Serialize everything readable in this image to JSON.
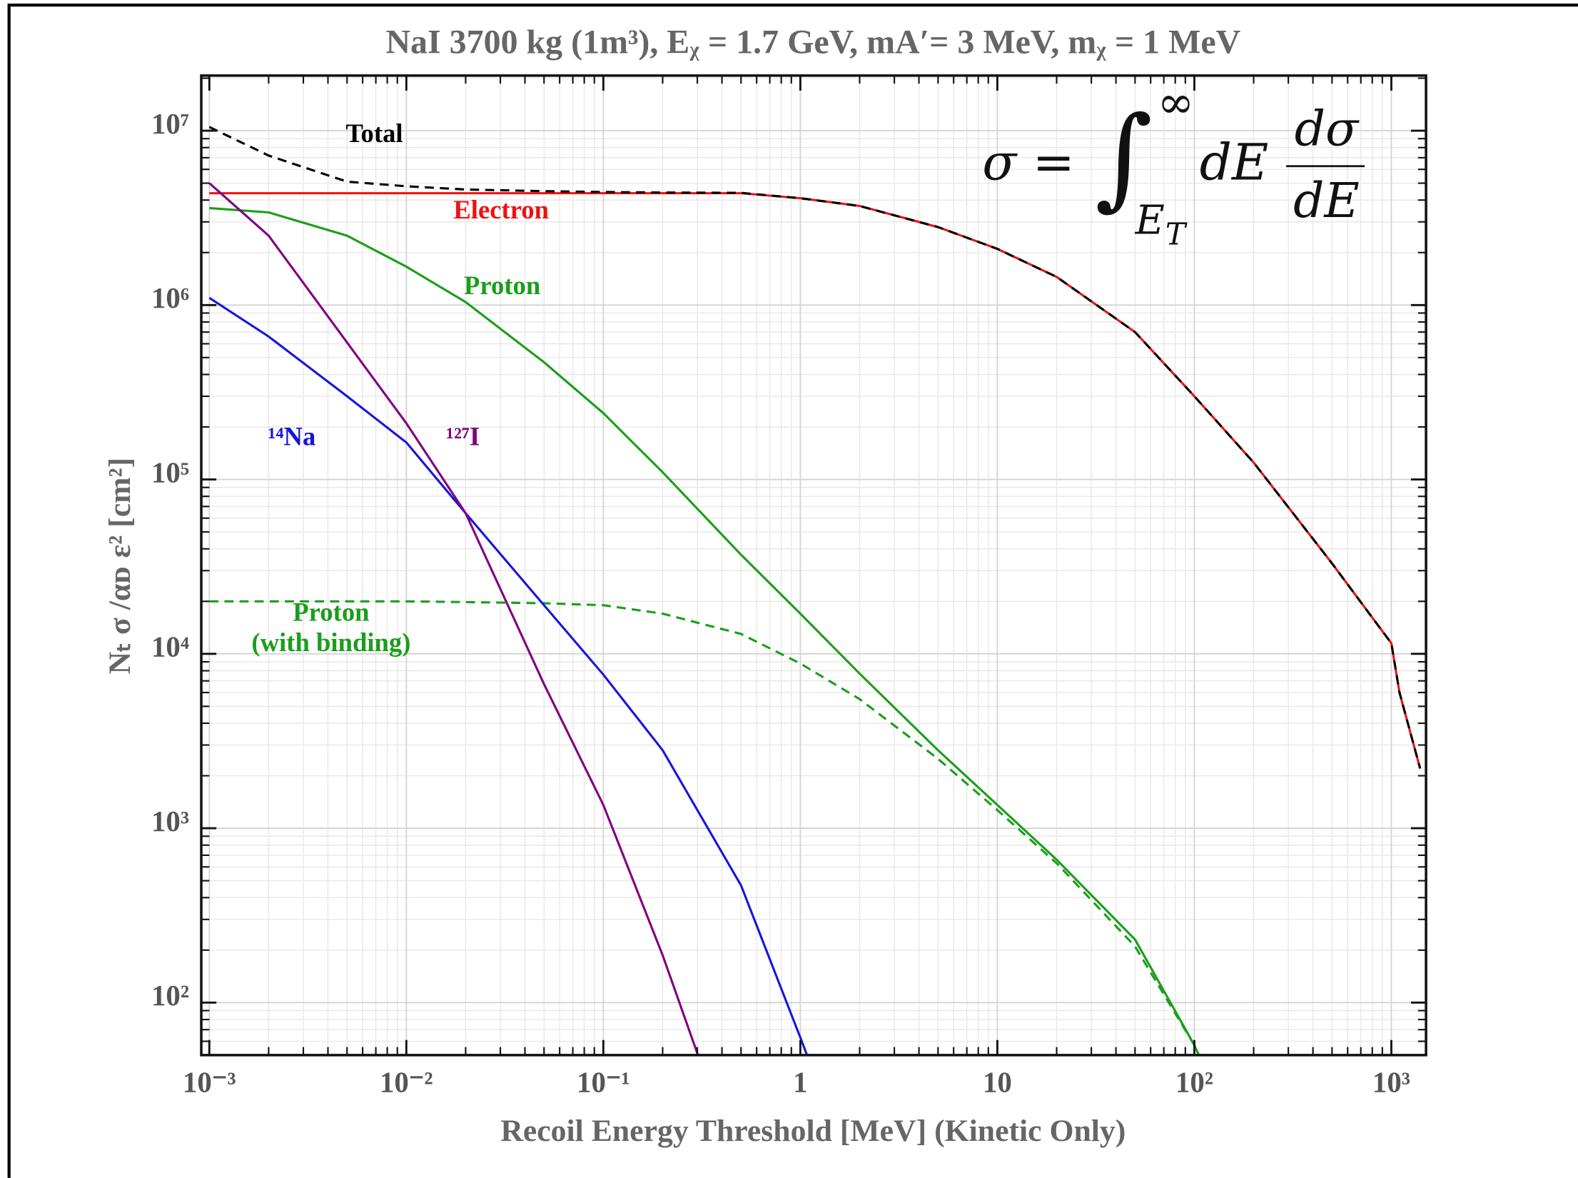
{
  "chart_data": {
    "type": "line",
    "title": "NaI 3700 kg (1m³),    Eᵪ = 1.7 GeV, mA′= 3 MeV, mᵪ = 1 MeV",
    "xlabel": "Recoil Energy Threshold  [MeV]  (Kinetic Only)",
    "ylabel": "Nₜ σ /αᴅ ε²   [cm²]",
    "log_x": true,
    "log_y": true,
    "grid": true,
    "xlim": [
      0.00091,
      1500
    ],
    "ylim": [
      50,
      20700000
    ],
    "xticks": [
      {
        "value": 0.001,
        "label": "10⁻³"
      },
      {
        "value": 0.01,
        "label": "10⁻²"
      },
      {
        "value": 0.1,
        "label": "10⁻¹"
      },
      1,
      10,
      {
        "value": 100,
        "label": "10²"
      },
      {
        "value": 1000,
        "label": "10³"
      }
    ],
    "yticks": [
      {
        "value": 100,
        "label": "10²"
      },
      {
        "value": 1000,
        "label": "10³"
      },
      {
        "value": 10000,
        "label": "10⁴"
      },
      {
        "value": 100000,
        "label": "10⁵"
      },
      {
        "value": 1000000,
        "label": "10⁶"
      },
      {
        "value": 10000000,
        "label": "10⁷"
      }
    ],
    "x": [
      0.001,
      0.002,
      0.005,
      0.01,
      0.02,
      0.05,
      0.1,
      0.2,
      0.5,
      1,
      2,
      5,
      10,
      20,
      50,
      100,
      200,
      500,
      1000,
      1100,
      1400
    ],
    "series": [
      {
        "name": "Electron",
        "color": "#ee1111",
        "dashed": false,
        "values": [
          4380000,
          4380000,
          4380000,
          4380000,
          4380000,
          4380000,
          4380000,
          4380000,
          4380000,
          4100000,
          3700000,
          2800000,
          2100000,
          1450000,
          700000,
          300000,
          125000,
          33000,
          11500,
          6000,
          2200
        ]
      },
      {
        "name": "Total",
        "color": "#000000",
        "dashed": true,
        "values": [
          10500000,
          7200000,
          5100000,
          4800000,
          4600000,
          4500000,
          4450000,
          4420000,
          4400000,
          4100000,
          3700000,
          2800000,
          2100000,
          1450000,
          700000,
          300000,
          125000,
          33000,
          11500,
          6000,
          2200
        ]
      },
      {
        "name": "Proton",
        "color": "#1a9e1a",
        "dashed": false,
        "values": [
          3600000,
          3400000,
          2500000,
          1660000,
          1040000,
          470000,
          240000,
          110000,
          37000,
          17000,
          7700,
          2800,
          1360,
          660,
          230,
          57,
          10,
          null,
          null,
          null,
          null
        ]
      },
      {
        "name": "Proton (with binding)",
        "color": "#1a9e1a",
        "dashed": true,
        "values": [
          20000,
          20000,
          20000,
          20000,
          19800,
          19500,
          19000,
          17000,
          13000,
          8800,
          5500,
          2500,
          1270,
          630,
          210,
          57,
          10,
          null,
          null,
          null,
          null
        ]
      },
      {
        "name": "¹⁴Na",
        "color": "#1515e0",
        "dashed": false,
        "values": [
          1100000,
          660000,
          300000,
          163000,
          64000,
          19000,
          7600,
          2800,
          470,
          63,
          8,
          null,
          null,
          null,
          null,
          null,
          null,
          null,
          null,
          null,
          null
        ]
      },
      {
        "name": "¹²⁷I",
        "color": "#800080",
        "dashed": false,
        "values": [
          5000000,
          2500000,
          610000,
          210000,
          64000,
          6700,
          1360,
          187,
          10,
          null,
          null,
          null,
          null,
          null,
          null,
          null,
          null,
          null,
          null,
          null,
          null
        ]
      }
    ],
    "formula": {
      "lhs": "σ =",
      "integral": "∫",
      "upper": "∞",
      "lower": {
        "base": "E",
        "sub": "T"
      },
      "mid": "dE",
      "numerator": "dσ",
      "denominator": "dE"
    }
  }
}
